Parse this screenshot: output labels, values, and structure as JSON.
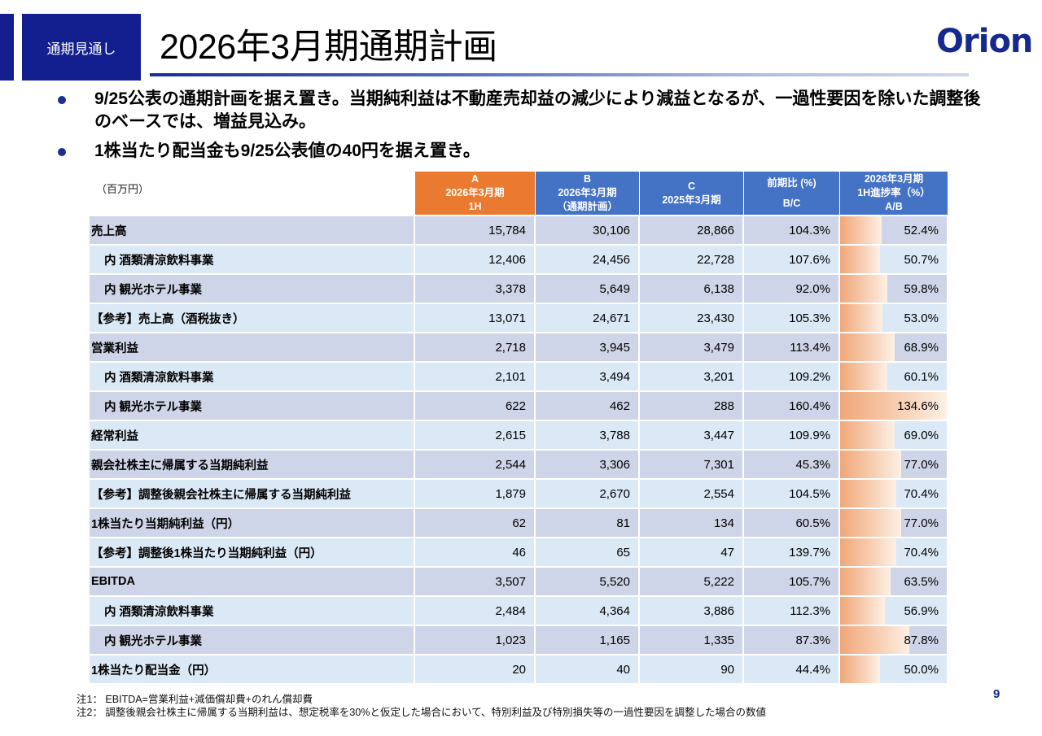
{
  "header": {
    "section_badge": "通期見通し",
    "title": "2026年3月期通期計画",
    "logo_text": "Orion"
  },
  "bullets": [
    "9/25公表の通期計画を据え置き。当期純利益は不動産売却益の減少により減益となるが、一過性要因を除いた調整後のベースでは、増益見込み。",
    "1株当たり配当金も9/25公表値の40円を据え置き。"
  ],
  "table": {
    "unit_label": "（百万円）",
    "columns": [
      {
        "line1": "A",
        "line2": "2026年3月期",
        "line3": "1H"
      },
      {
        "line1": "B",
        "line2": "2026年3月期",
        "line3": "（通期計画）"
      },
      {
        "line1": "C",
        "line2": "2025年3月期",
        "line3": ""
      },
      {
        "line1": "前期比 (%)",
        "line2": "",
        "line3": "B/C"
      },
      {
        "line1": "2026年3月期",
        "line2": "1H進捗率（%）",
        "line3": "A/B"
      }
    ],
    "progress_scale_max_pct": 134.6,
    "rows": [
      {
        "label": "売上高",
        "indent": false,
        "a": "15,784",
        "b": "30,106",
        "c": "28,866",
        "ratio": "104.3%",
        "progress": "52.4%",
        "progress_value": 52.4
      },
      {
        "label": "内 酒類清涼飲料事業",
        "indent": true,
        "a": "12,406",
        "b": "24,456",
        "c": "22,728",
        "ratio": "107.6%",
        "progress": "50.7%",
        "progress_value": 50.7
      },
      {
        "label": "内 観光ホテル事業",
        "indent": true,
        "a": "3,378",
        "b": "5,649",
        "c": "6,138",
        "ratio": "92.0%",
        "progress": "59.8%",
        "progress_value": 59.8
      },
      {
        "label": "【参考】売上高（酒税抜き）",
        "indent": false,
        "a": "13,071",
        "b": "24,671",
        "c": "23,430",
        "ratio": "105.3%",
        "progress": "53.0%",
        "progress_value": 53.0
      },
      {
        "label": "営業利益",
        "indent": false,
        "a": "2,718",
        "b": "3,945",
        "c": "3,479",
        "ratio": "113.4%",
        "progress": "68.9%",
        "progress_value": 68.9
      },
      {
        "label": "内 酒類清涼飲料事業",
        "indent": true,
        "a": "2,101",
        "b": "3,494",
        "c": "3,201",
        "ratio": "109.2%",
        "progress": "60.1%",
        "progress_value": 60.1
      },
      {
        "label": "内 観光ホテル事業",
        "indent": true,
        "a": "622",
        "b": "462",
        "c": "288",
        "ratio": "160.4%",
        "progress": "134.6%",
        "progress_value": 134.6
      },
      {
        "label": "経常利益",
        "indent": false,
        "a": "2,615",
        "b": "3,788",
        "c": "3,447",
        "ratio": "109.9%",
        "progress": "69.0%",
        "progress_value": 69.0
      },
      {
        "label": "親会社株主に帰属する当期純利益",
        "indent": false,
        "a": "2,544",
        "b": "3,306",
        "c": "7,301",
        "ratio": "45.3%",
        "progress": "77.0%",
        "progress_value": 77.0
      },
      {
        "label": "【参考】調整後親会社株主に帰属する当期純利益",
        "indent": false,
        "a": "1,879",
        "b": "2,670",
        "c": "2,554",
        "ratio": "104.5%",
        "progress": "70.4%",
        "progress_value": 70.4
      },
      {
        "label": "1株当たり当期純利益（円）",
        "indent": false,
        "a": "62",
        "b": "81",
        "c": "134",
        "ratio": "60.5%",
        "progress": "77.0%",
        "progress_value": 77.0
      },
      {
        "label": "【参考】調整後1株当たり当期純利益（円）",
        "indent": false,
        "a": "46",
        "b": "65",
        "c": "47",
        "ratio": "139.7%",
        "progress": "70.4%",
        "progress_value": 70.4
      },
      {
        "label": "EBITDA",
        "indent": false,
        "a": "3,507",
        "b": "5,520",
        "c": "5,222",
        "ratio": "105.7%",
        "progress": "63.5%",
        "progress_value": 63.5
      },
      {
        "label": "内 酒類清涼飲料事業",
        "indent": true,
        "a": "2,484",
        "b": "4,364",
        "c": "3,886",
        "ratio": "112.3%",
        "progress": "56.9%",
        "progress_value": 56.9
      },
      {
        "label": "内 観光ホテル事業",
        "indent": true,
        "a": "1,023",
        "b": "1,165",
        "c": "1,335",
        "ratio": "87.3%",
        "progress": "87.8%",
        "progress_value": 87.8
      },
      {
        "label": "1株当たり配当金（円）",
        "indent": false,
        "a": "20",
        "b": "40",
        "c": "90",
        "ratio": "44.4%",
        "progress": "50.0%",
        "progress_value": 50.0
      }
    ]
  },
  "notes": [
    "注1： EBITDA=営業利益+減価償却費+のれん償却費",
    "注2： 調整後親会社株主に帰属する当期利益は、想定税率を30%と仮定した場合において、特別利益及び特別損失等の一過性要因を調整した場合の数値"
  ],
  "page_number": "9",
  "colors": {
    "brand_navy": "#141f8f",
    "header_orange": "#e97a30",
    "header_blue": "#4472c4",
    "row_odd": "#cfd5e8",
    "row_even": "#dbe8f5",
    "progress_bar": "#f0a77a"
  }
}
